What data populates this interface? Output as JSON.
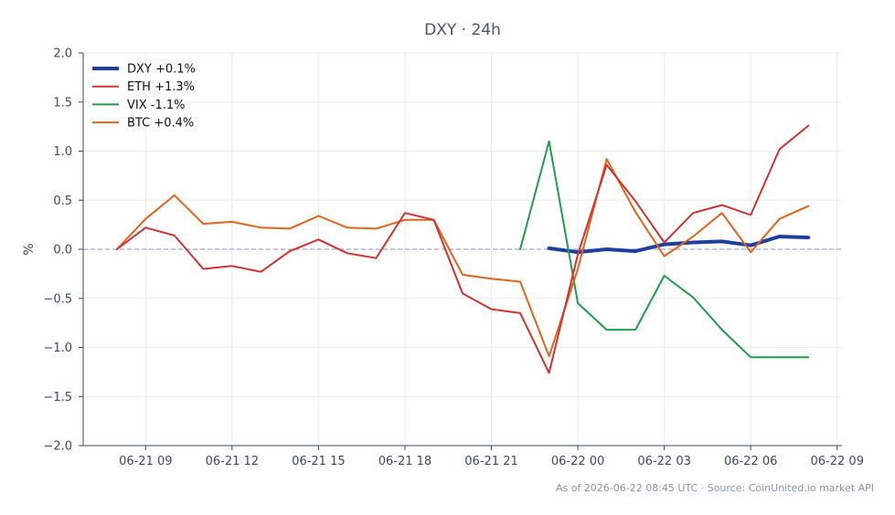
{
  "chart_data": {
    "type": "line",
    "title": "DXY · 24h",
    "xlabel": "",
    "ylabel": "%",
    "ylim": [
      -2.0,
      2.0
    ],
    "yticks": [
      -2.0,
      -1.5,
      -1.0,
      -0.5,
      0.0,
      0.5,
      1.0,
      1.5,
      2.0
    ],
    "ytick_labels": [
      "−2.0",
      "−1.5",
      "−1.0",
      "−0.5",
      "0.0",
      "0.5",
      "1.0",
      "1.5",
      "2.0"
    ],
    "xlim": [
      "2026-06-21 06:50",
      "2026-06-22 09:10"
    ],
    "xticks": [
      "2026-06-21 09:00",
      "2026-06-21 12:00",
      "2026-06-21 15:00",
      "2026-06-21 18:00",
      "2026-06-21 21:00",
      "2026-06-22 00:00",
      "2026-06-22 03:00",
      "2026-06-22 06:00",
      "2026-06-22 09:00"
    ],
    "xtick_labels": [
      "06-21 09",
      "06-21 12",
      "06-21 15",
      "06-21 18",
      "06-21 21",
      "06-22 00",
      "06-22 03",
      "06-22 06",
      "06-22 09"
    ],
    "grid": true,
    "reference_line": 0.0,
    "legend_position": "top-left",
    "series": [
      {
        "name": "DXY +0.1%",
        "color": "#1f3fa0",
        "x": [
          "2026-06-21 23:00",
          "2026-06-22 00:00",
          "2026-06-22 01:00",
          "2026-06-22 02:00",
          "2026-06-22 03:00",
          "2026-06-22 04:00",
          "2026-06-22 05:00",
          "2026-06-22 06:00",
          "2026-06-22 07:00",
          "2026-06-22 08:00"
        ],
        "values": [
          0.01,
          -0.03,
          0.0,
          -0.02,
          0.05,
          0.07,
          0.08,
          0.04,
          0.13,
          0.12
        ]
      },
      {
        "name": "ETH +1.3%",
        "color": "#d03232",
        "x": [
          "2026-06-21 08:00",
          "2026-06-21 09:00",
          "2026-06-21 10:00",
          "2026-06-21 11:00",
          "2026-06-21 12:00",
          "2026-06-21 13:00",
          "2026-06-21 14:00",
          "2026-06-21 15:00",
          "2026-06-21 16:00",
          "2026-06-21 17:00",
          "2026-06-21 18:00",
          "2026-06-21 19:00",
          "2026-06-21 20:00",
          "2026-06-21 21:00",
          "2026-06-21 22:00",
          "2026-06-21 23:00",
          "2026-06-22 00:00",
          "2026-06-22 01:00",
          "2026-06-22 02:00",
          "2026-06-22 03:00",
          "2026-06-22 04:00",
          "2026-06-22 05:00",
          "2026-06-22 06:00",
          "2026-06-22 07:00",
          "2026-06-22 08:00"
        ],
        "values": [
          0.0,
          0.22,
          0.14,
          -0.2,
          -0.17,
          -0.23,
          -0.02,
          0.1,
          -0.04,
          -0.09,
          0.37,
          0.3,
          -0.45,
          -0.61,
          -0.65,
          -1.26,
          -0.05,
          0.86,
          0.49,
          0.07,
          0.37,
          0.45,
          0.35,
          1.02,
          1.26
        ]
      },
      {
        "name": "VIX -1.1%",
        "color": "#1e9e4a",
        "x": [
          "2026-06-21 22:00",
          "2026-06-21 23:00",
          "2026-06-22 00:00",
          "2026-06-22 01:00",
          "2026-06-22 02:00",
          "2026-06-22 03:00",
          "2026-06-22 04:00",
          "2026-06-22 05:00",
          "2026-06-22 06:00",
          "2026-06-22 07:00",
          "2026-06-22 08:00"
        ],
        "values": [
          0.0,
          1.1,
          -0.55,
          -0.82,
          -0.82,
          -0.27,
          -0.49,
          -0.82,
          -1.1,
          -1.1,
          -1.1
        ]
      },
      {
        "name": "BTC +0.4%",
        "color": "#e0641a",
        "x": [
          "2026-06-21 08:00",
          "2026-06-21 09:00",
          "2026-06-21 10:00",
          "2026-06-21 11:00",
          "2026-06-21 12:00",
          "2026-06-21 13:00",
          "2026-06-21 14:00",
          "2026-06-21 15:00",
          "2026-06-21 16:00",
          "2026-06-21 17:00",
          "2026-06-21 18:00",
          "2026-06-21 19:00",
          "2026-06-21 20:00",
          "2026-06-21 21:00",
          "2026-06-21 22:00",
          "2026-06-21 23:00",
          "2026-06-22 00:00",
          "2026-06-22 01:00",
          "2026-06-22 02:00",
          "2026-06-22 03:00",
          "2026-06-22 04:00",
          "2026-06-22 05:00",
          "2026-06-22 06:00",
          "2026-06-22 07:00",
          "2026-06-22 08:00"
        ],
        "values": [
          0.0,
          0.31,
          0.55,
          0.26,
          0.28,
          0.22,
          0.21,
          0.34,
          0.22,
          0.21,
          0.3,
          0.3,
          -0.26,
          -0.3,
          -0.33,
          -1.09,
          -0.2,
          0.92,
          0.38,
          -0.07,
          0.13,
          0.37,
          -0.03,
          0.31,
          0.44
        ]
      }
    ]
  },
  "footer_note": "As of 2026-06-22 08:45 UTC · Source: CoinUnited.io market API"
}
